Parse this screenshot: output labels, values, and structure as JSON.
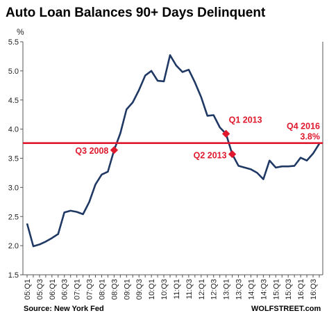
{
  "chart_data": {
    "type": "line",
    "title": "Auto Loan Balances 90+ Days Delinquent",
    "ylabel": "%",
    "ylim": [
      1.5,
      5.5
    ],
    "yticks": [
      "1.5",
      "2.0",
      "2.5",
      "3.0",
      "3.5",
      "4.0",
      "4.5",
      "5.0",
      "5.5"
    ],
    "xtick_labels": [
      "05:Q1",
      "05:Q3",
      "06:Q1",
      "06:Q3",
      "07:Q1",
      "07:Q3",
      "08:Q1",
      "08:Q3",
      "09:Q1",
      "09:Q3",
      "10:Q1",
      "10:Q3",
      "11:Q1",
      "11:Q3",
      "12:Q1",
      "12:Q3",
      "13:Q1",
      "13:Q3",
      "14:Q1",
      "14:Q3",
      "15:Q1",
      "15:Q3",
      "16:Q1",
      "16:Q3"
    ],
    "grid": false,
    "series": [
      {
        "color": "#1f3864",
        "values": [
          2.38,
          1.99,
          2.02,
          2.07,
          2.13,
          2.2,
          2.57,
          2.6,
          2.58,
          2.54,
          2.75,
          3.05,
          3.22,
          3.27,
          3.64,
          3.93,
          4.34,
          4.46,
          4.67,
          4.92,
          5.0,
          4.83,
          4.82,
          5.27,
          5.09,
          4.98,
          5.02,
          4.8,
          4.55,
          4.23,
          4.24,
          4.03,
          3.92,
          3.57,
          3.37,
          3.34,
          3.31,
          3.25,
          3.14,
          3.46,
          3.34,
          3.36,
          3.36,
          3.37,
          3.51,
          3.46,
          3.58,
          3.75
        ]
      }
    ],
    "reference_line": {
      "value": 3.76,
      "color": "#e0182d"
    },
    "highlights": [
      {
        "index": 14,
        "label": "Q3 2008"
      },
      {
        "index": 32,
        "label": "Q1 2013"
      },
      {
        "index": 33,
        "label": "Q2 2013"
      }
    ],
    "end_label": {
      "line1": "Q4 2016",
      "line2": "3.8%"
    }
  },
  "source": "Source: New  York Fed",
  "brand": "WOLFSTREET.com"
}
